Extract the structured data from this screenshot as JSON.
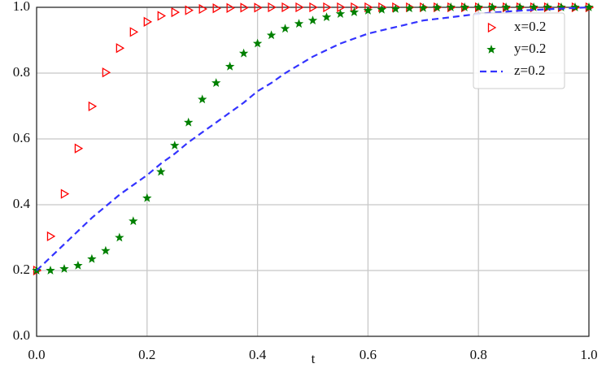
{
  "chart_data": {
    "type": "line",
    "x_label": "t",
    "x": [
      0,
      0.025,
      0.05,
      0.075,
      0.1,
      0.125,
      0.15,
      0.175,
      0.2,
      0.225,
      0.25,
      0.275,
      0.3,
      0.325,
      0.35,
      0.375,
      0.4,
      0.425,
      0.45,
      0.475,
      0.5,
      0.525,
      0.55,
      0.575,
      0.6,
      0.625,
      0.65,
      0.675,
      0.7,
      0.725,
      0.75,
      0.775,
      0.8,
      0.825,
      0.85,
      0.875,
      0.9,
      0.925,
      0.95,
      0.975,
      1.0
    ],
    "series": [
      {
        "name": "x=0.2",
        "color": "#ff0000",
        "marker": "triangle-right",
        "linestyle": "none",
        "values": [
          0.2,
          0.304,
          0.433,
          0.571,
          0.699,
          0.802,
          0.876,
          0.925,
          0.956,
          0.974,
          0.985,
          0.991,
          0.995,
          0.997,
          0.998,
          0.999,
          0.999,
          1.0,
          1.0,
          1.0,
          1.0,
          1.0,
          1.0,
          1.0,
          1.0,
          1.0,
          1.0,
          1.0,
          1.0,
          1.0,
          1.0,
          1.0,
          1.0,
          1.0,
          1.0,
          1.0,
          1.0,
          1.0,
          1.0,
          1.0,
          1.0
        ]
      },
      {
        "name": "y=0.2",
        "color": "#008000",
        "marker": "star",
        "linestyle": "none",
        "values": [
          0.2,
          0.2,
          0.205,
          0.215,
          0.235,
          0.26,
          0.3,
          0.35,
          0.42,
          0.5,
          0.58,
          0.65,
          0.72,
          0.77,
          0.82,
          0.86,
          0.89,
          0.915,
          0.935,
          0.95,
          0.96,
          0.97,
          0.98,
          0.985,
          0.99,
          0.993,
          0.995,
          0.997,
          0.998,
          0.999,
          1.0,
          1.0,
          1.0,
          1.0,
          1.0,
          1.0,
          1.0,
          1.0,
          1.0,
          1.0,
          1.0
        ]
      },
      {
        "name": "z=0.2",
        "color": "#3333ff",
        "marker": "none",
        "linestyle": "dashed",
        "values": [
          0.2,
          0.24,
          0.28,
          0.32,
          0.36,
          0.395,
          0.43,
          0.46,
          0.49,
          0.525,
          0.555,
          0.59,
          0.62,
          0.65,
          0.68,
          0.71,
          0.745,
          0.77,
          0.8,
          0.825,
          0.85,
          0.87,
          0.89,
          0.905,
          0.92,
          0.93,
          0.94,
          0.95,
          0.96,
          0.965,
          0.97,
          0.975,
          0.98,
          0.984,
          0.987,
          0.99,
          0.992,
          0.994,
          0.996,
          0.998,
          1.0
        ]
      }
    ],
    "xlim": [
      0,
      1.0
    ],
    "ylim": [
      0,
      1.0
    ],
    "xticks": [
      {
        "value": 0,
        "label": "0.0"
      },
      0.2,
      0.4,
      0.6,
      0.8,
      {
        "value": 1,
        "label": "1.0"
      }
    ],
    "yticks": [
      {
        "value": 0,
        "label": "0.0"
      },
      0.2,
      0.4,
      0.6,
      0.8,
      {
        "value": 1,
        "label": "1.0"
      }
    ],
    "grid": true,
    "legend": "upper right"
  }
}
